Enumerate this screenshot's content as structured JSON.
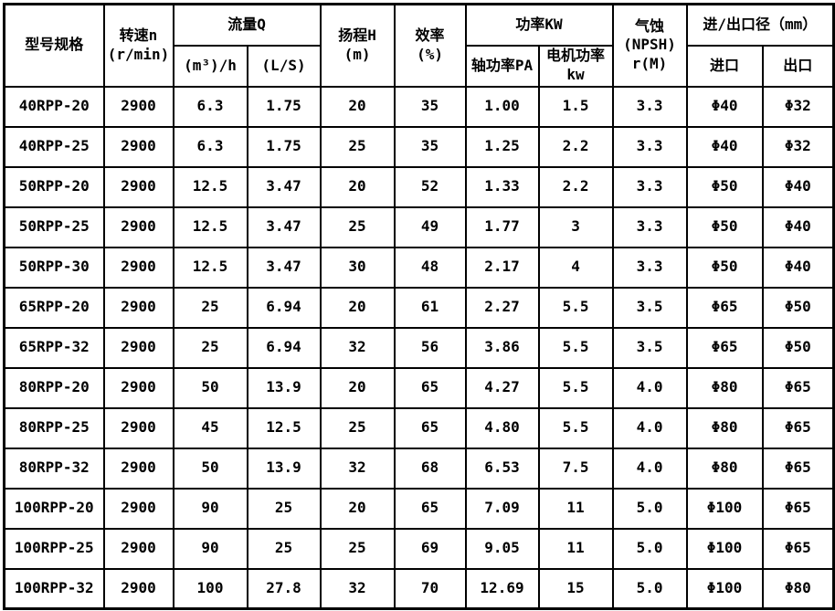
{
  "table": {
    "header": {
      "model": "型号规格",
      "speed_line1": "转速n",
      "speed_line2": "(r/min)",
      "flow": "流量Q",
      "flow_m3h": "(m³)/h",
      "flow_ls": "(L/S)",
      "head_line1": "扬程H",
      "head_line2": "(m)",
      "efficiency_line1": "效率",
      "efficiency_line2": "(%)",
      "power": "功率KW",
      "shaft_power": "轴功率PA",
      "motor_power_line1": "电机功率",
      "motor_power_line2": "kw",
      "npsh_line1": "气蚀",
      "npsh_line2": "(NPSH)",
      "npsh_line3": "r(M)",
      "inlet_outlet": "进/出口径（mm）",
      "inlet": "进口",
      "outlet": "出口"
    },
    "rows": [
      [
        "40RPP-20",
        "2900",
        "6.3",
        "1.75",
        "20",
        "35",
        "1.00",
        "1.5",
        "3.3",
        "Φ40",
        "Φ32"
      ],
      [
        "40RPP-25",
        "2900",
        "6.3",
        "1.75",
        "25",
        "35",
        "1.25",
        "2.2",
        "3.3",
        "Φ40",
        "Φ32"
      ],
      [
        "50RPP-20",
        "2900",
        "12.5",
        "3.47",
        "20",
        "52",
        "1.33",
        "2.2",
        "3.3",
        "Φ50",
        "Φ40"
      ],
      [
        "50RPP-25",
        "2900",
        "12.5",
        "3.47",
        "25",
        "49",
        "1.77",
        "3",
        "3.3",
        "Φ50",
        "Φ40"
      ],
      [
        "50RPP-30",
        "2900",
        "12.5",
        "3.47",
        "30",
        "48",
        "2.17",
        "4",
        "3.3",
        "Φ50",
        "Φ40"
      ],
      [
        "65RPP-20",
        "2900",
        "25",
        "6.94",
        "20",
        "61",
        "2.27",
        "5.5",
        "3.5",
        "Φ65",
        "Φ50"
      ],
      [
        "65RPP-32",
        "2900",
        "25",
        "6.94",
        "32",
        "56",
        "3.86",
        "5.5",
        "3.5",
        "Φ65",
        "Φ50"
      ],
      [
        "80RPP-20",
        "2900",
        "50",
        "13.9",
        "20",
        "65",
        "4.27",
        "5.5",
        "4.0",
        "Φ80",
        "Φ65"
      ],
      [
        "80RPP-25",
        "2900",
        "45",
        "12.5",
        "25",
        "65",
        "4.80",
        "5.5",
        "4.0",
        "Φ80",
        "Φ65"
      ],
      [
        "80RPP-32",
        "2900",
        "50",
        "13.9",
        "32",
        "68",
        "6.53",
        "7.5",
        "4.0",
        "Φ80",
        "Φ65"
      ],
      [
        "100RPP-20",
        "2900",
        "90",
        "25",
        "20",
        "65",
        "7.09",
        "11",
        "5.0",
        "Φ100",
        "Φ65"
      ],
      [
        "100RPP-25",
        "2900",
        "90",
        "25",
        "25",
        "69",
        "9.05",
        "11",
        "5.0",
        "Φ100",
        "Φ65"
      ],
      [
        "100RPP-32",
        "2900",
        "100",
        "27.8",
        "32",
        "70",
        "12.69",
        "15",
        "5.0",
        "Φ100",
        "Φ80"
      ]
    ]
  },
  "chart_data": {
    "type": "table",
    "columns": [
      "型号规格",
      "转速n (r/min)",
      "流量Q (m³)/h",
      "流量Q (L/S)",
      "扬程H (m)",
      "效率 (%)",
      "功率KW 轴功率PA",
      "功率KW 电机功率kw",
      "气蚀(NPSH)r(M)",
      "进口径 (mm)",
      "出口径 (mm)"
    ],
    "rows": [
      [
        "40RPP-20",
        "2900",
        "6.3",
        "1.75",
        "20",
        "35",
        "1.00",
        "1.5",
        "3.3",
        "Φ40",
        "Φ32"
      ],
      [
        "40RPP-25",
        "2900",
        "6.3",
        "1.75",
        "25",
        "35",
        "1.25",
        "2.2",
        "3.3",
        "Φ40",
        "Φ32"
      ],
      [
        "50RPP-20",
        "2900",
        "12.5",
        "3.47",
        "20",
        "52",
        "1.33",
        "2.2",
        "3.3",
        "Φ50",
        "Φ40"
      ],
      [
        "50RPP-25",
        "2900",
        "12.5",
        "3.47",
        "25",
        "49",
        "1.77",
        "3",
        "3.3",
        "Φ50",
        "Φ40"
      ],
      [
        "50RPP-30",
        "2900",
        "12.5",
        "3.47",
        "30",
        "48",
        "2.17",
        "4",
        "3.3",
        "Φ50",
        "Φ40"
      ],
      [
        "65RPP-20",
        "2900",
        "25",
        "6.94",
        "20",
        "61",
        "2.27",
        "5.5",
        "3.5",
        "Φ65",
        "Φ50"
      ],
      [
        "65RPP-32",
        "2900",
        "25",
        "6.94",
        "32",
        "56",
        "3.86",
        "5.5",
        "3.5",
        "Φ65",
        "Φ50"
      ],
      [
        "80RPP-20",
        "2900",
        "50",
        "13.9",
        "20",
        "65",
        "4.27",
        "5.5",
        "4.0",
        "Φ80",
        "Φ65"
      ],
      [
        "80RPP-25",
        "2900",
        "45",
        "12.5",
        "25",
        "65",
        "4.80",
        "5.5",
        "4.0",
        "Φ80",
        "Φ65"
      ],
      [
        "80RPP-32",
        "2900",
        "50",
        "13.9",
        "32",
        "68",
        "6.53",
        "7.5",
        "4.0",
        "Φ80",
        "Φ65"
      ],
      [
        "100RPP-20",
        "2900",
        "90",
        "25",
        "20",
        "65",
        "7.09",
        "11",
        "5.0",
        "Φ100",
        "Φ65"
      ],
      [
        "100RPP-25",
        "2900",
        "90",
        "25",
        "25",
        "69",
        "9.05",
        "11",
        "5.0",
        "Φ100",
        "Φ65"
      ],
      [
        "100RPP-32",
        "2900",
        "100",
        "27.8",
        "32",
        "70",
        "12.69",
        "15",
        "5.0",
        "Φ100",
        "Φ80"
      ]
    ]
  }
}
